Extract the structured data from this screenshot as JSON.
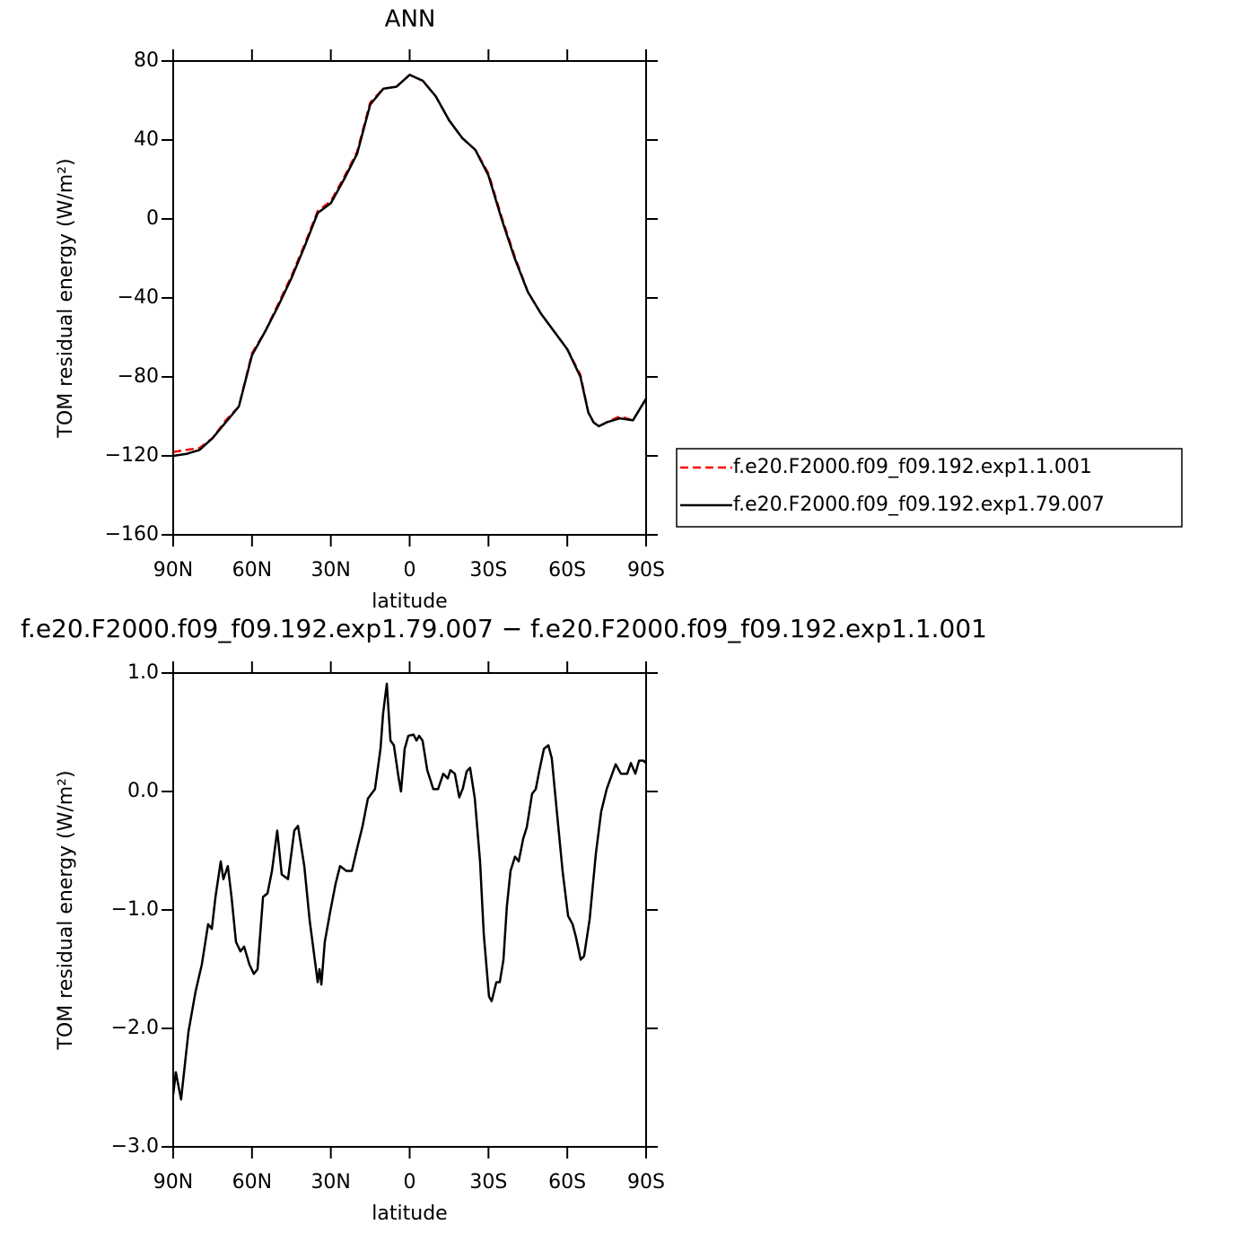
{
  "chart_data": [
    {
      "type": "line",
      "title": "ANN",
      "xlabel": "latitude",
      "ylabel": "TOM residual energy (W/m²)",
      "x": [
        90,
        85,
        80,
        75,
        70,
        65,
        60,
        55,
        50,
        45,
        40,
        35,
        30,
        25,
        20,
        15,
        10,
        5,
        0,
        -5,
        -10,
        -15,
        -20,
        -25,
        -30,
        -35,
        -40,
        -45,
        -50,
        -55,
        -60,
        -65,
        -68,
        -70,
        -72,
        -75,
        -80,
        -85,
        -90
      ],
      "series": [
        {
          "name": "f.e20.F2000.f09_f09.192.exp1.1.001",
          "color": "#ff0000",
          "dashed": true,
          "values": [
            -118,
            -117,
            -116,
            -111,
            -102,
            -95,
            -68,
            -57,
            -43,
            -29,
            -13,
            4,
            9,
            21,
            34,
            59,
            66,
            67,
            73,
            70,
            62,
            50,
            41,
            35,
            23,
            1,
            -19,
            -37,
            -48,
            -57,
            -66,
            -79,
            -98,
            -103,
            -105,
            -103,
            -100,
            -102,
            -91
          ]
        },
        {
          "name": "f.e20.F2000.f09_f09.192.exp1.79.007",
          "color": "#000000",
          "dashed": false,
          "values": [
            -120,
            -119,
            -117,
            -111,
            -103,
            -95,
            -69,
            -57,
            -44,
            -30,
            -14,
            3,
            8,
            20,
            33,
            58,
            66,
            67,
            73,
            70,
            62,
            50,
            41,
            35,
            22,
            0,
            -20,
            -37,
            -48,
            -57,
            -66,
            -80,
            -98,
            -103,
            -105,
            -103,
            -101,
            -102,
            -91
          ]
        }
      ],
      "xlim": [
        90,
        -90
      ],
      "xticks": [
        {
          "value": 90,
          "label": "90N"
        },
        {
          "value": 60,
          "label": "60N"
        },
        {
          "value": 30,
          "label": "30N"
        },
        0,
        {
          "value": -30,
          "label": "30S"
        },
        {
          "value": -60,
          "label": "60S"
        },
        {
          "value": -90,
          "label": "90S"
        }
      ],
      "ylim": [
        -160,
        80
      ],
      "yticks": [
        80,
        40,
        0,
        {
          "value": -40,
          "label": "−40"
        },
        {
          "value": -80,
          "label": "−80"
        },
        {
          "value": -120,
          "label": "−120"
        },
        {
          "value": -160,
          "label": "−160"
        }
      ],
      "legend": "right"
    },
    {
      "type": "line",
      "title": "f.e20.F2000.f09_f09.192.exp1.79.007 − f.e20.F2000.f09_f09.192.exp1.1.001",
      "xlabel": "latitude",
      "ylabel": "TOM residual energy (W/m²)",
      "x": [
        90,
        89,
        87,
        84.2,
        81.5,
        79.1,
        76.7,
        75.3,
        73.9,
        71.9,
        70.9,
        69.2,
        67.8,
        66.1,
        64.4,
        63,
        61,
        59.3,
        57.9,
        55.8,
        54.1,
        52.4,
        50.4,
        48.7,
        46.3,
        43.9,
        42.5,
        40.1,
        38.1,
        35,
        34.3,
        33.6,
        32.3,
        30.2,
        28.2,
        26.5,
        24.1,
        22,
        20,
        17.9,
        15.9,
        13.2,
        11.1,
        10.1,
        8.7,
        7.3,
        6,
        4.3,
        3.3,
        1.9,
        0.5,
        -1.5,
        -2.6,
        -3.6,
        -4.9,
        -6.7,
        -9,
        -10.8,
        -12.8,
        -14.5,
        -15.5,
        -17.2,
        -18.9,
        -20.3,
        -21.7,
        -23,
        -24.8,
        -26.8,
        -28.2,
        -30.2,
        -31.2,
        -33,
        -34.3,
        -35.7,
        -37,
        -38.4,
        -40.1,
        -41.5,
        -43.2,
        -44.6,
        -46.6,
        -48,
        -49.3,
        -51.1,
        -52.8,
        -54.1,
        -56.2,
        -58.2,
        -60.3,
        -62,
        -63.3,
        -65.1,
        -66.4,
        -68.5,
        -70.9,
        -72.9,
        -75,
        -78.4,
        -80.4,
        -82.8,
        -84.2,
        -85.9,
        -87.3,
        -89,
        -90
      ],
      "series": [
        {
          "color": "#000000",
          "dashed": false,
          "values": [
            -2.56,
            -2.37,
            -2.6,
            -2.03,
            -1.69,
            -1.46,
            -1.12,
            -1.16,
            -0.89,
            -0.59,
            -0.74,
            -0.63,
            -0.89,
            -1.27,
            -1.35,
            -1.31,
            -1.46,
            -1.54,
            -1.5,
            -0.89,
            -0.86,
            -0.67,
            -0.33,
            -0.7,
            -0.74,
            -0.33,
            -0.29,
            -0.63,
            -1.08,
            -1.61,
            -1.5,
            -1.63,
            -1.27,
            -1.01,
            -0.78,
            -0.63,
            -0.67,
            -0.67,
            -0.48,
            -0.29,
            -0.06,
            0.02,
            0.36,
            0.66,
            0.91,
            0.43,
            0.39,
            0.13,
            0,
            0.36,
            0.47,
            0.48,
            0.43,
            0.47,
            0.43,
            0.18,
            0.02,
            0.02,
            0.15,
            0.11,
            0.18,
            0.15,
            -0.05,
            0.03,
            0.17,
            0.2,
            -0.06,
            -0.59,
            -1.2,
            -1.73,
            -1.77,
            -1.61,
            -1.61,
            -1.42,
            -0.97,
            -0.67,
            -0.55,
            -0.59,
            -0.4,
            -0.3,
            -0.02,
            0.02,
            0.17,
            0.36,
            0.39,
            0.28,
            -0.21,
            -0.67,
            -1.05,
            -1.12,
            -1.23,
            -1.42,
            -1.39,
            -1.08,
            -0.52,
            -0.17,
            0.02,
            0.23,
            0.15,
            0.15,
            0.24,
            0.15,
            0.26,
            0.26,
            0.24
          ]
        }
      ],
      "xlim": [
        90,
        -90
      ],
      "xticks": [
        {
          "value": 90,
          "label": "90N"
        },
        {
          "value": 60,
          "label": "60N"
        },
        {
          "value": 30,
          "label": "30N"
        },
        0,
        {
          "value": -30,
          "label": "30S"
        },
        {
          "value": -60,
          "label": "60S"
        },
        {
          "value": -90,
          "label": "90S"
        }
      ],
      "ylim": [
        -3,
        1
      ],
      "yticks": [
        {
          "value": 1,
          "label": "1.0"
        },
        {
          "value": 0,
          "label": "0.0"
        },
        {
          "value": -1,
          "label": "−1.0"
        },
        {
          "value": -2,
          "label": "−2.0"
        },
        {
          "value": -3,
          "label": "−3.0"
        }
      ]
    }
  ]
}
